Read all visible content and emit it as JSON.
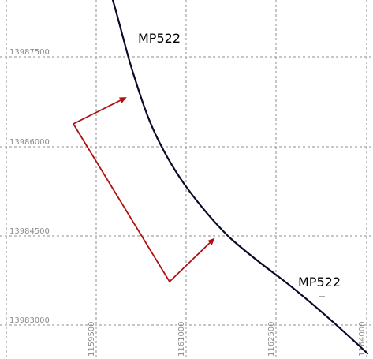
{
  "map": {
    "y_ticks": [
      {
        "label": "13987500"
      },
      {
        "label": "13986000"
      },
      {
        "label": "13984500"
      },
      {
        "label": "13983000"
      }
    ],
    "x_ticks": [
      {
        "label": "1159500"
      },
      {
        "label": "1161000"
      },
      {
        "label": "1162500"
      },
      {
        "label": "1164000"
      }
    ],
    "route_labels": [
      {
        "text": "MP522"
      },
      {
        "text": "MP522"
      }
    ],
    "colors": {
      "route": "#0a0a2a",
      "arrows": "#b01010",
      "grid": "#8c8c8c",
      "tick_text": "#8a8a8a"
    }
  }
}
